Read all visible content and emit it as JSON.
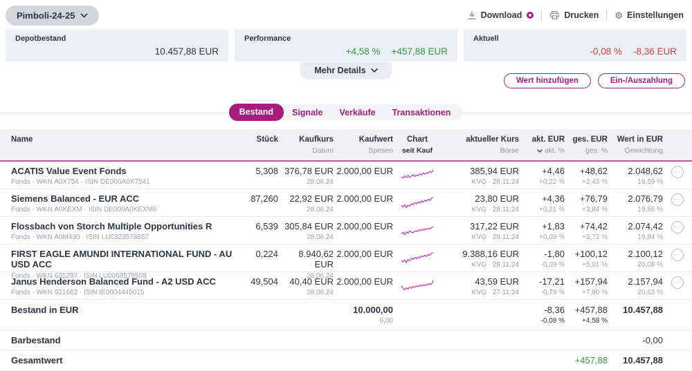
{
  "header": {
    "portfolio_selector": "Pimboli-24-25",
    "actions": {
      "download": "Download",
      "print": "Drucken",
      "settings": "Einstellungen"
    }
  },
  "summary": {
    "depot": {
      "label": "Depotbestand",
      "value": "10.457,88 EUR"
    },
    "performance": {
      "label": "Performance",
      "percent": "+4,58 %",
      "value": "+457,88 EUR"
    },
    "aktuell": {
      "label": "Aktuell",
      "percent": "-0,08 %",
      "value": "-8,36 EUR"
    }
  },
  "mehr_details_label": "Mehr Details",
  "cta": {
    "add_value": "Wert hinzufügen",
    "payment": "Ein-/Auszahlung"
  },
  "tabs": [
    {
      "label": "Bestand",
      "active": true
    },
    {
      "label": "Signale",
      "active": false
    },
    {
      "label": "Verkäufe",
      "active": false
    },
    {
      "label": "Transaktionen",
      "active": false
    }
  ],
  "table": {
    "headers": {
      "name": "Name",
      "stueck": "Stück",
      "kaufkurs": "Kaufkurs",
      "datum": "Datum",
      "kaufwert": "Kaufwert",
      "spesen": "Spesen",
      "chart": "Chart",
      "seit_kauf": "seit Kauf",
      "akt_kurs": "aktueller Kurs",
      "boerse": "Börse",
      "akt_eur": "akt. EUR",
      "akt_pct": "akt. %",
      "ges_eur": "ges. EUR",
      "ges_pct": "ges. %",
      "wert": "Wert in EUR",
      "gewichtung": "Gewichtung"
    },
    "rows": [
      {
        "name": "ACATIS Value Event Fonds",
        "sub": "Fonds · WKN A0X754 · ISIN DE000A0X7541",
        "stueck": "5,308",
        "kaufkurs": "376,78 EUR",
        "datum": "28.06.24",
        "kaufwert": "2.000,00 EUR",
        "akt_kurs": "385,94 EUR",
        "boerse": "KVG · 28.11.24",
        "akt_eur": "+4,46",
        "akt_pct": "+0,22 %",
        "ges_eur": "+48,62",
        "ges_pct": "+2,43 %",
        "wert": "2.048,62",
        "gewichtung": "19,59 %",
        "spark": [
          45,
          38,
          52,
          40,
          55,
          42,
          50,
          60,
          48,
          58,
          52,
          64,
          58,
          70,
          62,
          72,
          68,
          80,
          74,
          88
        ]
      },
      {
        "name": "Siemens Balanced - EUR ACC",
        "sub": "Fonds · WKN A0KEXM · ISIN DE000A0KEXM6",
        "stueck": "87,260",
        "kaufkurs": "22,92 EUR",
        "datum": "28.06.24",
        "kaufwert": "2.000,00 EUR",
        "akt_kurs": "23,80 EUR",
        "boerse": "KVG · 28.11.24",
        "akt_eur": "+4,36",
        "akt_pct": "+0,21 %",
        "ges_eur": "+76,79",
        "ges_pct": "+3,84 %",
        "wert": "2.076,79",
        "gewichtung": "19,86 %",
        "spark": [
          40,
          30,
          45,
          25,
          42,
          35,
          50,
          44,
          58,
          50,
          62,
          56,
          68,
          60,
          72,
          66,
          78,
          72,
          85,
          90
        ]
      },
      {
        "name": "Flossbach von Storch Multiple Opportunities R",
        "sub": "Fonds · WKN A0M430 · ISIN LU0323578657",
        "stueck": "6,539",
        "kaufkurs": "305,84 EUR",
        "datum": "28.06.24",
        "kaufwert": "2.000,00 EUR",
        "akt_kurs": "317,22 EUR",
        "boerse": "KVG · 29.11.24",
        "akt_eur": "+1,83",
        "akt_pct": "+0,09 %",
        "ges_eur": "+74,42",
        "ges_pct": "+3,72 %",
        "wert": "2.074,42",
        "gewichtung": "19,84 %",
        "spark": [
          35,
          45,
          30,
          48,
          38,
          55,
          45,
          42,
          52,
          48,
          58,
          54,
          62,
          58,
          66,
          62,
          70,
          66,
          74,
          80
        ]
      },
      {
        "name": "FIRST EAGLE AMUNDI INTERNATIONAL FUND - AU USD ACC",
        "sub": "Fonds · WKN 635297 · ISIN LU0068578508",
        "stueck": "0,224",
        "kaufkurs": "8.940,62 EUR",
        "datum": "28.06.24",
        "kaufwert": "2.000,00 EUR",
        "akt_kurs": "9.388,16 EUR",
        "boerse": "KVG · 28.11.24",
        "akt_eur": "-1,80",
        "akt_pct": "-0,09 %",
        "ges_eur": "+100,12",
        "ges_pct": "+5,01 %",
        "wert": "2.100,12",
        "gewichtung": "20,08 %",
        "spark": [
          42,
          32,
          45,
          28,
          48,
          38,
          55,
          48,
          60,
          52,
          64,
          58,
          70,
          64,
          74,
          68,
          80,
          74,
          85,
          92
        ]
      },
      {
        "name": "Janus Henderson Balanced Fund - A2 USD ACC",
        "sub": "Fonds · WKN 921662 · ISIN IE0004445015",
        "stueck": "49,504",
        "kaufkurs": "40,40 EUR",
        "datum": "28.06.24",
        "kaufwert": "2.000,00 EUR",
        "akt_kurs": "43,59 EUR",
        "boerse": "KVG · 27.11.24",
        "akt_eur": "-17,21",
        "akt_pct": "-0,79 %",
        "ges_eur": "+157,94",
        "ges_pct": "+7,90 %",
        "wert": "2.157,94",
        "gewichtung": "20,63 %",
        "spark": [
          55,
          40,
          30,
          42,
          35,
          48,
          40,
          52,
          46,
          56,
          50,
          60,
          54,
          62,
          58,
          66,
          60,
          70,
          64,
          90
        ]
      }
    ]
  },
  "footer": {
    "bestand": {
      "label": "Bestand in EUR",
      "kaufwert": "10.000,00",
      "spesen": "0,00",
      "akt_eur": "-8,36",
      "akt_pct": "-0,08 %",
      "ges_eur": "+457,88",
      "ges_pct": "+4,58 %",
      "wert": "10.457,88"
    },
    "barbestand": {
      "label": "Barbestand",
      "wert": "-0,00"
    },
    "gesamtwert": {
      "label": "Gesamtwert",
      "ges_eur": "+457,88",
      "wert": "10.457,88"
    }
  },
  "colors": {
    "brand_magenta": "#a81c7c",
    "spark_magenta": "#c44cb4",
    "positive_green": "#2f9b38",
    "negative_red": "#d94040"
  }
}
